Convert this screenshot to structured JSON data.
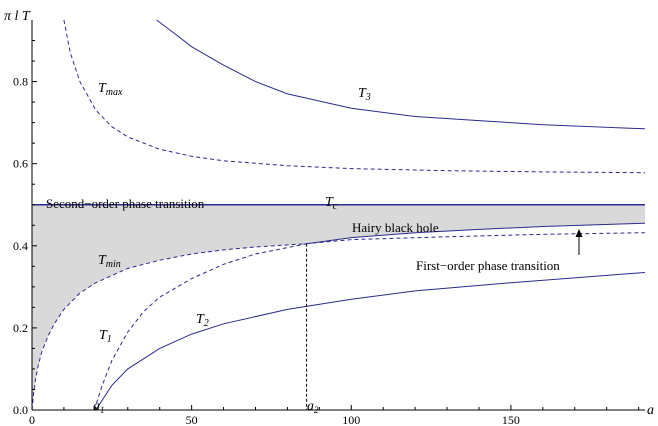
{
  "chart_data": {
    "type": "line",
    "xlabel": "a",
    "ylabel": "π l T",
    "xlim": [
      0,
      192
    ],
    "ylim": [
      0,
      0.95
    ],
    "x_ticks": [
      0,
      50,
      100,
      150
    ],
    "y_ticks": [
      0.0,
      0.2,
      0.4,
      0.6,
      0.8
    ],
    "x_tick_labels": [
      "0",
      "50",
      "100",
      "150"
    ],
    "y_tick_labels": [
      "0.0",
      "0.2",
      "0.4",
      "0.6",
      "0.8"
    ],
    "colors": {
      "curve": "#2b2b8f",
      "shade": "#d9d9d9",
      "axis": "#000000"
    },
    "series": [
      {
        "name": "T_max",
        "style": "dashed",
        "x": [
          10,
          12,
          15,
          20,
          25,
          30,
          40,
          50,
          60,
          80,
          100,
          130,
          160,
          192
        ],
        "y": [
          0.95,
          0.87,
          0.8,
          0.73,
          0.69,
          0.665,
          0.635,
          0.618,
          0.607,
          0.595,
          0.588,
          0.583,
          0.58,
          0.578
        ]
      },
      {
        "name": "T_3",
        "style": "solid",
        "x": [
          39,
          45,
          50,
          60,
          70,
          80,
          100,
          120,
          140,
          160,
          192
        ],
        "y": [
          0.95,
          0.915,
          0.885,
          0.84,
          0.8,
          0.77,
          0.735,
          0.715,
          0.705,
          0.695,
          0.685
        ]
      },
      {
        "name": "T_c",
        "style": "solid",
        "x": [
          0,
          192
        ],
        "y": [
          0.5,
          0.5
        ]
      },
      {
        "name": "T_min",
        "style": "dashed",
        "x": [
          0,
          0.5,
          1,
          2,
          3,
          5,
          7,
          10,
          15,
          20,
          30,
          40,
          50,
          60,
          70,
          86,
          100,
          130,
          160,
          192
        ],
        "y": [
          0,
          0.04,
          0.07,
          0.11,
          0.14,
          0.18,
          0.21,
          0.245,
          0.285,
          0.31,
          0.345,
          0.365,
          0.38,
          0.39,
          0.397,
          0.405,
          0.415,
          0.422,
          0.428,
          0.432
        ]
      },
      {
        "name": "First-order phase transition",
        "style": "solid",
        "x": [
          86,
          100,
          120,
          140,
          160,
          192
        ],
        "y": [
          0.405,
          0.42,
          0.432,
          0.44,
          0.447,
          0.455
        ]
      },
      {
        "name": "T_1",
        "style": "dashed",
        "x": [
          19.5,
          22,
          25,
          30,
          35,
          40,
          50,
          60,
          70,
          86
        ],
        "y": [
          0,
          0.06,
          0.12,
          0.19,
          0.24,
          0.275,
          0.32,
          0.355,
          0.38,
          0.405
        ]
      },
      {
        "name": "T_2",
        "style": "solid",
        "x": [
          20,
          25,
          30,
          40,
          50,
          60,
          80,
          100,
          120,
          150,
          192
        ],
        "y": [
          0,
          0.06,
          0.1,
          0.15,
          0.185,
          0.21,
          0.245,
          0.27,
          0.29,
          0.31,
          0.335
        ]
      }
    ],
    "annotations": {
      "T_max": "T",
      "T_max_sub": "max",
      "T_3": "T",
      "T_3_sub": "3",
      "T_c": "T",
      "T_c_sub": "c",
      "T_min": "T",
      "T_min_sub": "min",
      "T_1": "T",
      "T_1_sub": "1",
      "T_2": "T",
      "T_2_sub": "2",
      "second_order": "Second−order phase transition",
      "hairy": "Hairy black hole",
      "first_order": "First−order phase transition",
      "a1": "a",
      "a1_sub": "1",
      "a2": "a",
      "a2_sub": "2",
      "a1_x": 20,
      "a2_x": 86
    }
  }
}
